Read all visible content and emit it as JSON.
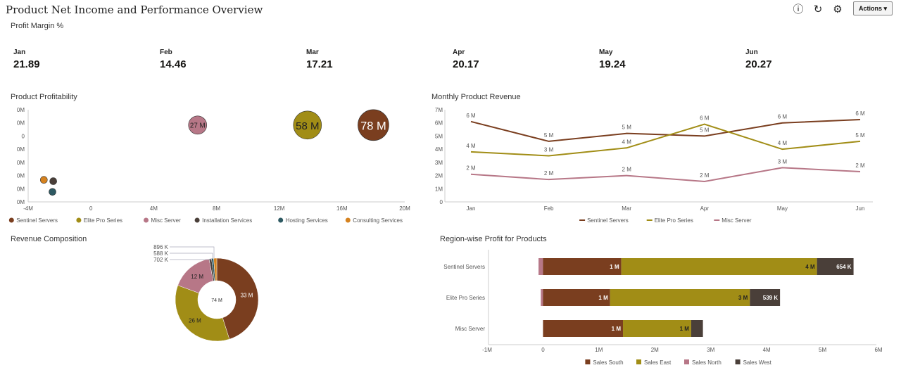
{
  "header": {
    "title": "Product Net Income and Performance Overview",
    "actions_label": "Actions",
    "icons": [
      "info-icon",
      "refresh-icon",
      "gear-icon"
    ]
  },
  "kpi": {
    "title": "Profit Margin %",
    "items": [
      {
        "label": "Jan",
        "value": "21.89"
      },
      {
        "label": "Feb",
        "value": "14.46"
      },
      {
        "label": "Mar",
        "value": "17.21"
      },
      {
        "label": "Apr",
        "value": "20.17"
      },
      {
        "label": "May",
        "value": "19.24"
      },
      {
        "label": "Jun",
        "value": "20.27"
      }
    ]
  },
  "colors": {
    "Sentinel Servers": "#7a3e1f",
    "Elite Pro Series": "#a18d16",
    "Misc Server": "#b77787",
    "Installation Services": "#4a3f39",
    "Hosting Services": "#2d5962",
    "Consulting Services": "#d5821f",
    "Sales South": "#7a3e1f",
    "Sales East": "#a18d16",
    "Sales North": "#b77787",
    "Sales West": "#4a3f39"
  },
  "chart_data": [
    {
      "id": "bubble",
      "type": "scatter",
      "title": "Product Profitability",
      "xlim": [
        -4,
        20
      ],
      "x_ticks": [
        "-4M",
        "0",
        "4M",
        "8M",
        "12M",
        "16M",
        "20M"
      ],
      "y_ticks": [
        "0M",
        "0M",
        "0",
        "0M",
        "0M",
        "0M",
        "0M",
        "0M"
      ],
      "legend": "bottom",
      "series": [
        {
          "name": "Sentinel Servers",
          "x": 18,
          "y": 0.08,
          "size": "78 M",
          "label": "78 M"
        },
        {
          "name": "Elite Pro Series",
          "x": 13.8,
          "y": 0.08,
          "size": "58 M",
          "label": "58 M"
        },
        {
          "name": "Misc Server",
          "x": 6.8,
          "y": 0.08,
          "size": "27 M",
          "label": "27 M"
        },
        {
          "name": "Installation Services",
          "x": -2.4,
          "y": -0.34,
          "size": "",
          "label": ""
        },
        {
          "name": "Hosting Services",
          "x": -2.45,
          "y": -0.42,
          "size": "",
          "label": ""
        },
        {
          "name": "Consulting Services",
          "x": -3,
          "y": -0.33,
          "size": "",
          "label": ""
        }
      ]
    },
    {
      "id": "line",
      "type": "line",
      "title": "Monthly Product Revenue",
      "ylim": [
        0,
        7
      ],
      "y_ticks": [
        "0",
        "1M",
        "2M",
        "3M",
        "4M",
        "5M",
        "6M",
        "7M"
      ],
      "categories": [
        "Jan",
        "Feb",
        "Mar",
        "Apr",
        "May",
        "Jun"
      ],
      "legend": "bottom",
      "series": [
        {
          "name": "Sentinel Servers",
          "values": [
            6.1,
            4.6,
            5.2,
            5.0,
            6.0,
            6.25
          ],
          "labels": [
            "6 M",
            "5 M",
            "5 M",
            "5 M",
            "6 M",
            "6 M"
          ]
        },
        {
          "name": "Elite Pro Series",
          "values": [
            3.8,
            3.5,
            4.1,
            5.9,
            4.0,
            4.6
          ],
          "labels": [
            "4 M",
            "3 M",
            "4 M",
            "6 M",
            "4 M",
            "5 M"
          ]
        },
        {
          "name": "Misc Server",
          "values": [
            2.1,
            1.7,
            2.0,
            1.55,
            2.6,
            2.3
          ],
          "labels": [
            "2 M",
            "2 M",
            "2 M",
            "2 M",
            "3 M",
            "2 M"
          ]
        }
      ]
    },
    {
      "id": "donut",
      "type": "pie",
      "title": "Revenue Composition",
      "center_label": "74 M",
      "slices": [
        {
          "name": "Sentinel Servers",
          "value": 33,
          "label": "33 M"
        },
        {
          "name": "Elite Pro Series",
          "value": 26,
          "label": "26 M"
        },
        {
          "name": "Misc Server",
          "value": 12,
          "label": "12 M"
        },
        {
          "name": "Installation Services",
          "value": 0.702,
          "label": "702 K"
        },
        {
          "name": "Hosting Services",
          "value": 0.588,
          "label": "588 K"
        },
        {
          "name": "Consulting Services",
          "value": 0.896,
          "label": "896 K"
        }
      ]
    },
    {
      "id": "hbar",
      "type": "bar",
      "orientation": "horizontal",
      "stacked": true,
      "title": "Region-wise Profit for Products",
      "xlim": [
        -1,
        6
      ],
      "x_ticks": [
        "-1M",
        "0",
        "1M",
        "2M",
        "3M",
        "4M",
        "5M",
        "6M"
      ],
      "categories": [
        "Sentinel Servers",
        "Elite Pro Series",
        "Misc Server"
      ],
      "legend": "bottom",
      "series": [
        {
          "name": "Sales South",
          "values": [
            1.4,
            1.2,
            1.43
          ],
          "labels": [
            "1 M",
            "1 M",
            "1 M"
          ]
        },
        {
          "name": "Sales East",
          "values": [
            3.5,
            2.5,
            1.22
          ],
          "labels": [
            "4 M",
            "3 M",
            "1 M"
          ]
        },
        {
          "name": "Sales North",
          "values": [
            -0.08,
            -0.04,
            0
          ],
          "labels": [
            "",
            "",
            ""
          ]
        },
        {
          "name": "Sales West",
          "values": [
            0.654,
            0.539,
            0.21
          ],
          "labels": [
            "654 K",
            "539 K",
            ""
          ]
        }
      ]
    }
  ]
}
